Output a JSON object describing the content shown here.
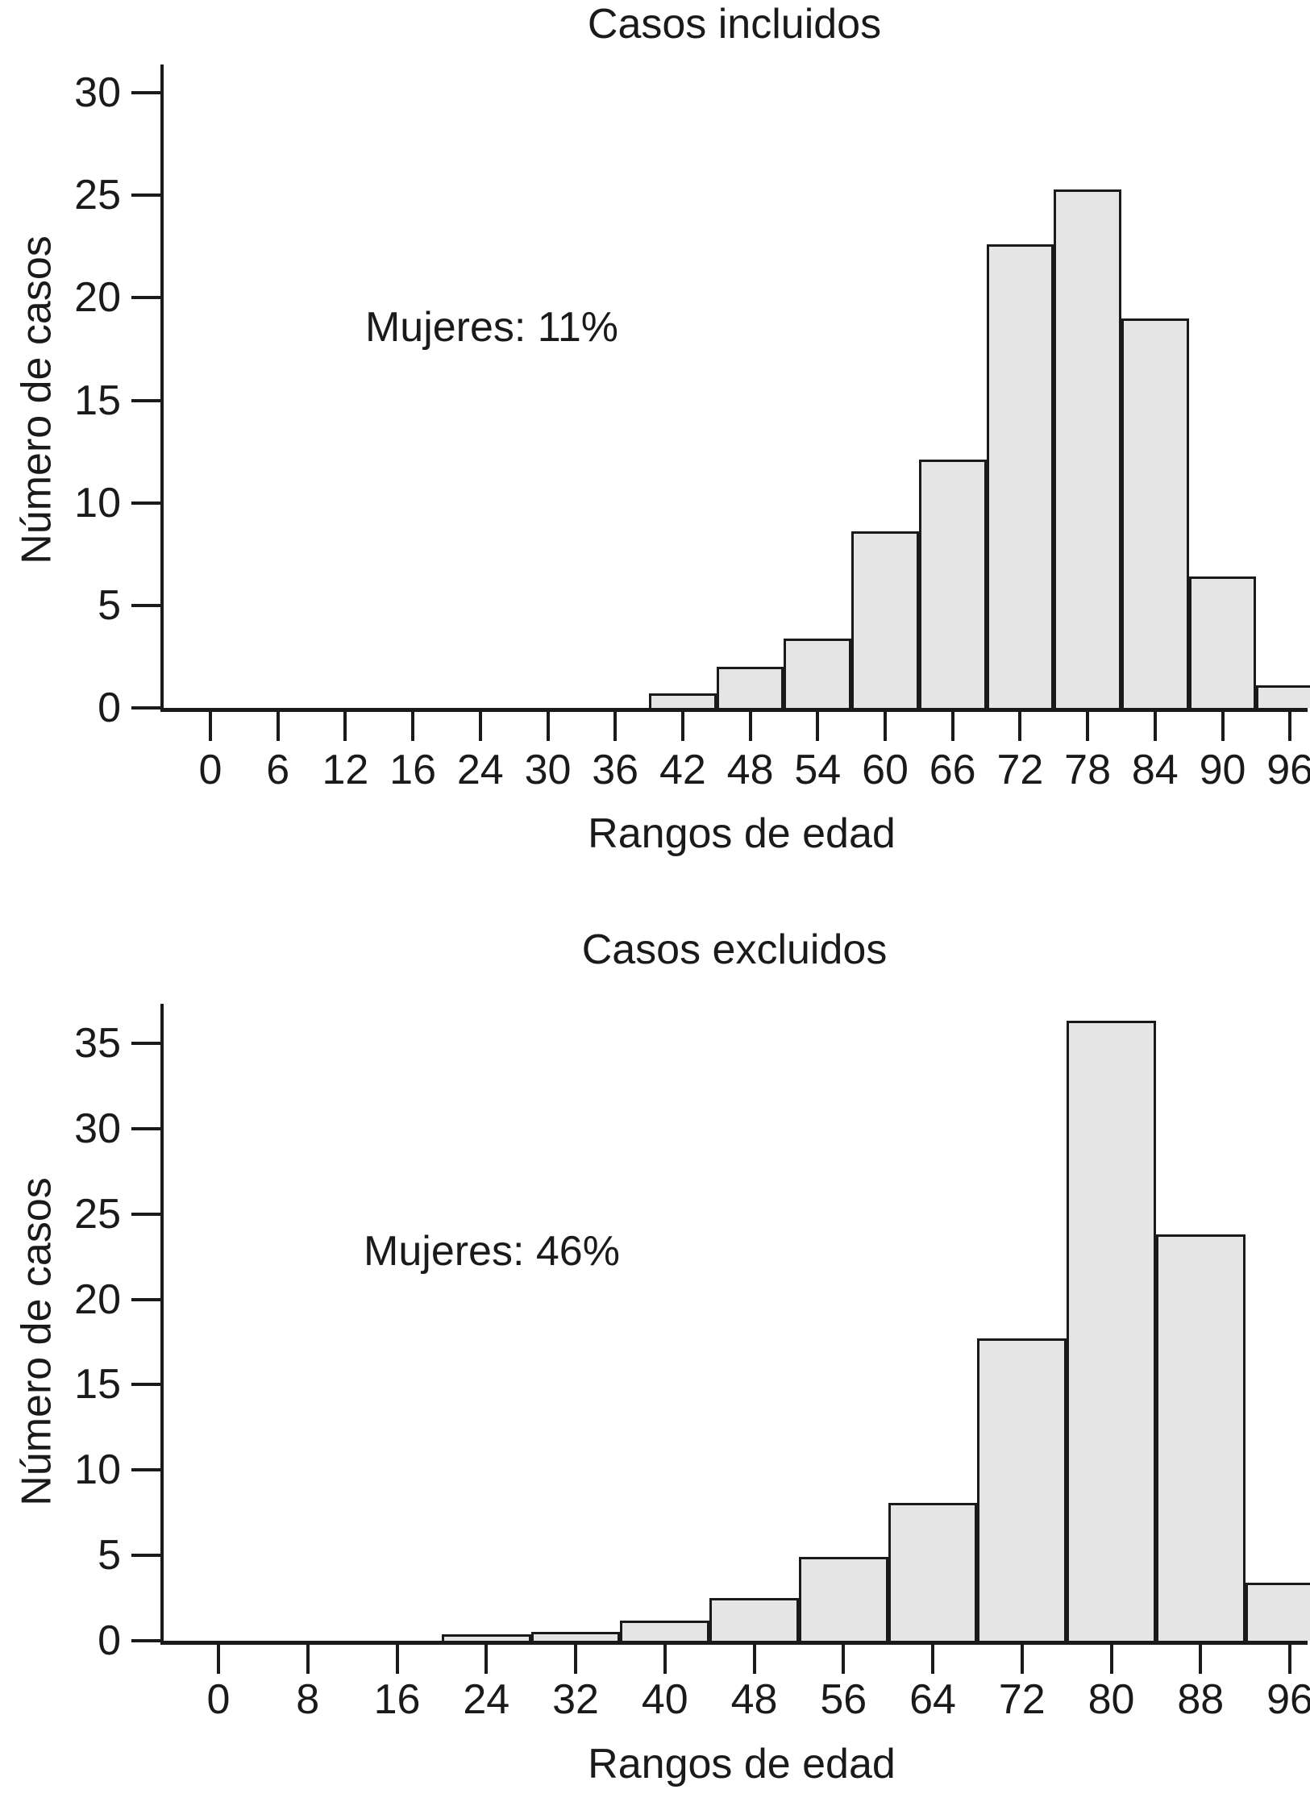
{
  "page": {
    "background_color": "#ffffff",
    "text_color": "#1a1a1a",
    "bar_fill_color": "#e5e5e5",
    "bar_stroke_color": "#1a1a1a"
  },
  "chart_data": [
    {
      "type": "bar",
      "title": "Casos incluidos",
      "xlabel": "Rangos de edad",
      "ylabel": "Número de casos",
      "annotation": "Mujeres: 11%",
      "x_tick_labels": [
        "0",
        "6",
        "12",
        "16",
        "24",
        "30",
        "36",
        "42",
        "48",
        "54",
        "60",
        "66",
        "72",
        "78",
        "84",
        "90",
        "96"
      ],
      "y_ticks": [
        0,
        5,
        10,
        15,
        20,
        25,
        30
      ],
      "ylim": [
        0,
        31.4
      ],
      "grid": false,
      "legend": "none",
      "bin_width": 6,
      "bar_start_index": 7,
      "bin_centers": [
        42,
        48,
        54,
        60,
        66,
        72,
        78,
        84,
        90,
        96
      ],
      "values": [
        0.7,
        2.0,
        3.4,
        8.6,
        12.1,
        22.6,
        25.3,
        19.0,
        6.4,
        1.1
      ]
    },
    {
      "type": "bar",
      "title": "Casos excluidos",
      "xlabel": "Rangos de edad",
      "ylabel": "Número de casos",
      "annotation": "Mujeres: 46%",
      "x_tick_labels": [
        "0",
        "8",
        "16",
        "24",
        "32",
        "40",
        "48",
        "56",
        "64",
        "72",
        "80",
        "88",
        "96"
      ],
      "y_ticks": [
        0,
        5,
        10,
        15,
        20,
        25,
        30,
        35
      ],
      "ylim": [
        0,
        37.3
      ],
      "grid": false,
      "legend": "none",
      "bin_width": 8,
      "bar_start_index": 3,
      "bin_centers": [
        24,
        32,
        40,
        48,
        56,
        64,
        72,
        80,
        88,
        96
      ],
      "values": [
        0.4,
        0.5,
        1.2,
        2.5,
        4.9,
        8.1,
        17.7,
        36.3,
        23.8,
        3.4
      ]
    }
  ]
}
